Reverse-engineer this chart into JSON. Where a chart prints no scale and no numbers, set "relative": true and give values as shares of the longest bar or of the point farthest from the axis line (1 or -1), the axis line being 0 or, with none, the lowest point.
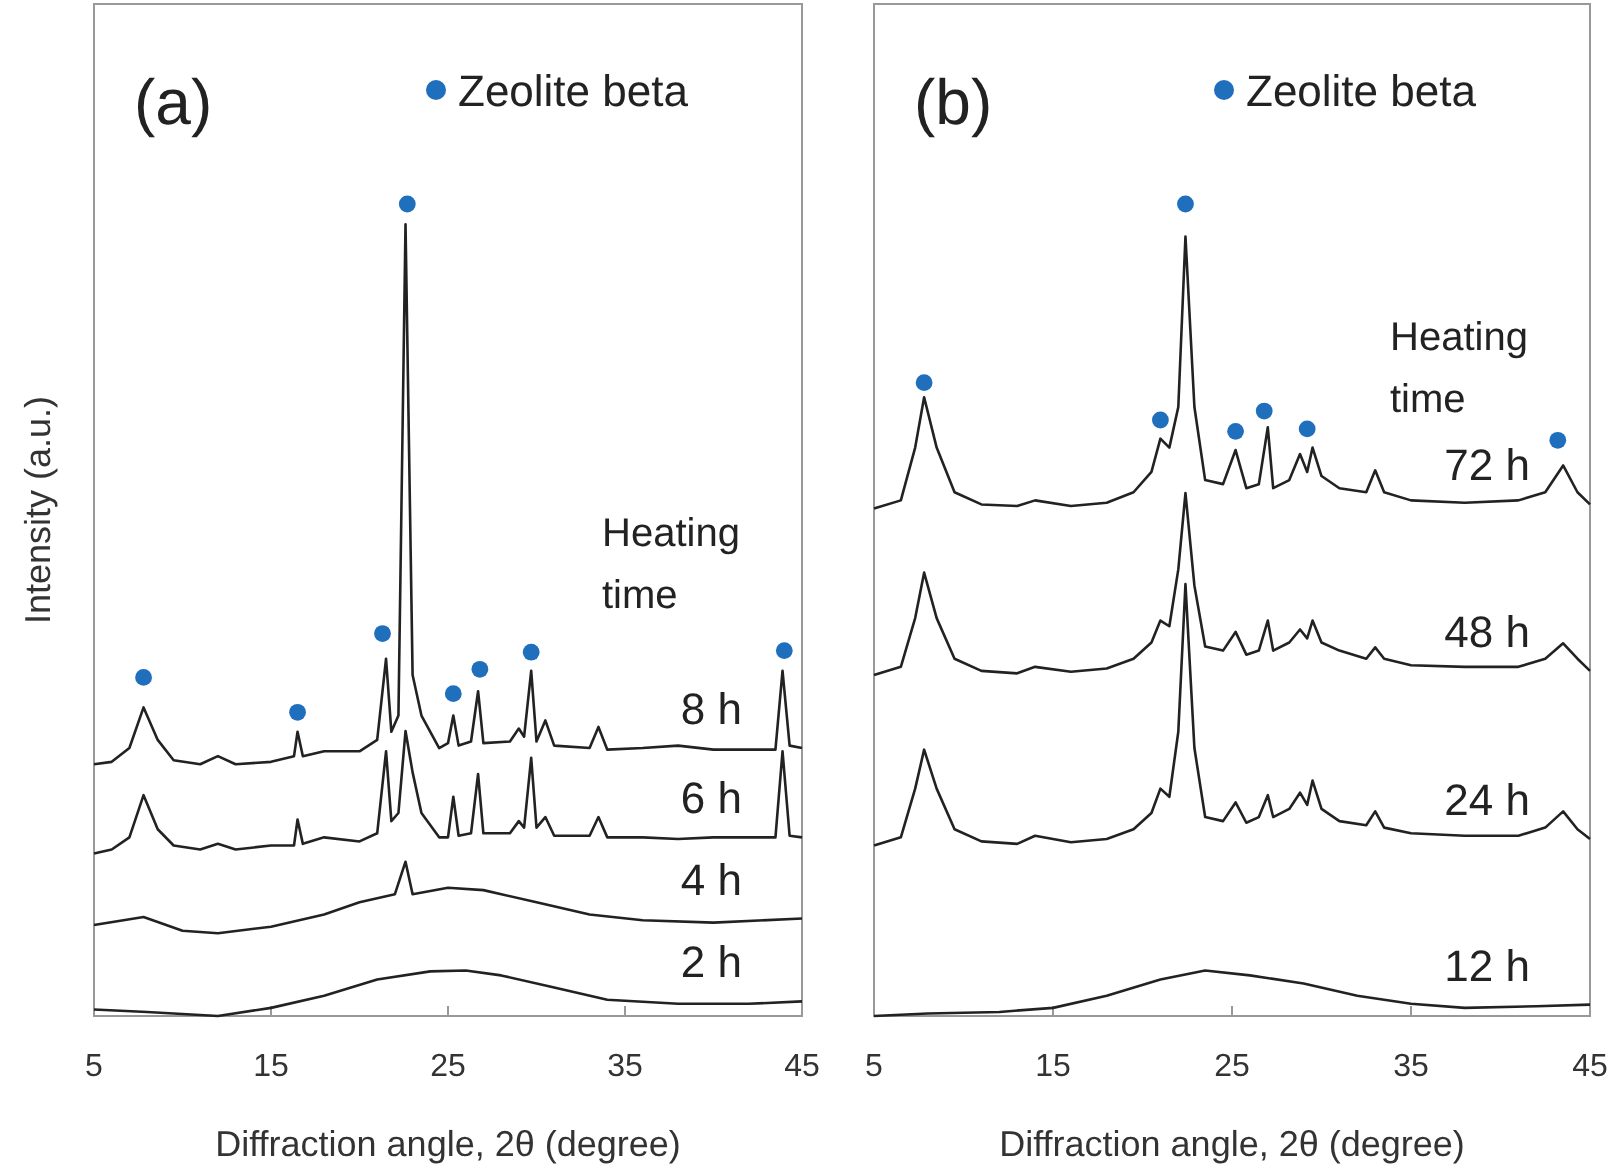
{
  "chart_data": [
    {
      "type": "line",
      "title": "(a)",
      "xlabel": "Diffraction angle, 2θ (degree)",
      "ylabel": "Intensity (a.u.)",
      "relative": true,
      "xlim": [
        5,
        45
      ],
      "xticks": [
        5,
        15,
        25,
        35,
        45
      ],
      "legend": "top right",
      "annotations": [
        "Heating time"
      ],
      "series": [
        {
          "name": "8 h",
          "color": "#222222",
          "x": [
            5,
            6,
            7,
            7.8,
            8.6,
            9.5,
            11,
            12,
            13,
            15,
            16.3,
            16.5,
            16.8,
            18,
            20,
            21,
            21.5,
            21.8,
            22.2,
            22.6,
            23,
            23.5,
            24.5,
            25,
            25.3,
            25.6,
            26.3,
            26.7,
            27,
            28.5,
            29,
            29.3,
            29.7,
            30,
            30.5,
            31,
            33,
            33.5,
            34,
            36,
            38,
            40,
            43.5,
            43.9,
            44.3,
            45
          ],
          "values": [
            0.31,
            0.313,
            0.33,
            0.38,
            0.34,
            0.315,
            0.31,
            0.32,
            0.31,
            0.313,
            0.32,
            0.35,
            0.32,
            0.326,
            0.326,
            0.34,
            0.44,
            0.35,
            0.37,
            0.975,
            0.42,
            0.37,
            0.33,
            0.336,
            0.37,
            0.333,
            0.338,
            0.4,
            0.336,
            0.338,
            0.354,
            0.344,
            0.425,
            0.338,
            0.364,
            0.333,
            0.33,
            0.356,
            0.328,
            0.33,
            0.333,
            0.328,
            0.328,
            0.425,
            0.333,
            0.33
          ]
        },
        {
          "name": "6 h",
          "color": "#222222",
          "x": [
            5,
            6,
            7,
            7.8,
            8.6,
            9.5,
            11,
            12,
            13,
            15,
            16.3,
            16.5,
            16.8,
            18,
            20,
            21,
            21.5,
            21.8,
            22.2,
            22.6,
            23,
            23.5,
            24.5,
            25,
            25.3,
            25.6,
            26.3,
            26.7,
            27,
            28.5,
            29,
            29.3,
            29.7,
            30,
            30.5,
            31,
            33,
            33.5,
            34,
            36,
            38,
            40,
            43.5,
            43.9,
            44.3,
            45
          ],
          "values": [
            0.2,
            0.205,
            0.22,
            0.272,
            0.23,
            0.21,
            0.205,
            0.212,
            0.205,
            0.21,
            0.21,
            0.242,
            0.212,
            0.22,
            0.215,
            0.225,
            0.326,
            0.24,
            0.25,
            0.351,
            0.3,
            0.25,
            0.22,
            0.22,
            0.27,
            0.222,
            0.225,
            0.298,
            0.225,
            0.225,
            0.24,
            0.232,
            0.318,
            0.232,
            0.245,
            0.222,
            0.222,
            0.245,
            0.22,
            0.22,
            0.218,
            0.22,
            0.22,
            0.326,
            0.222,
            0.22
          ]
        },
        {
          "name": "4 h",
          "color": "#222222",
          "x": [
            5,
            7.8,
            10,
            12,
            15,
            18,
            20,
            22,
            22.6,
            23,
            25,
            27,
            30,
            33,
            36,
            40,
            45
          ],
          "values": [
            0.112,
            0.122,
            0.105,
            0.102,
            0.11,
            0.125,
            0.14,
            0.15,
            0.19,
            0.15,
            0.158,
            0.155,
            0.14,
            0.125,
            0.118,
            0.115,
            0.12
          ]
        },
        {
          "name": "2 h",
          "color": "#222222",
          "x": [
            5,
            8,
            12,
            15,
            18,
            21,
            24,
            26,
            28,
            31,
            34,
            38,
            42,
            45
          ],
          "values": [
            0.008,
            0.005,
            0,
            0.01,
            0.025,
            0.045,
            0.055,
            0.056,
            0.05,
            0.035,
            0.02,
            0.015,
            0.015,
            0.018
          ]
        },
        {
          "name": "Zeolite beta",
          "type": "scatter",
          "marker": "circle",
          "color": "#1f6fbd",
          "x": [
            7.8,
            16.5,
            21.3,
            22.7,
            25.3,
            26.8,
            29.7,
            44
          ],
          "values": [
            0.417,
            0.374,
            0.471,
            1,
            0.397,
            0.427,
            0.448,
            0.45
          ]
        }
      ]
    },
    {
      "type": "line",
      "title": "(b)",
      "xlabel": "Diffraction angle, 2θ (degree)",
      "relative": true,
      "xlim": [
        5,
        45
      ],
      "xticks": [
        5,
        15,
        25,
        35,
        45
      ],
      "legend": "top right",
      "annotations": [
        "Heating time"
      ],
      "series": [
        {
          "name": "72 h",
          "color": "#222222",
          "x": [
            5,
            6.5,
            7.3,
            7.8,
            8.5,
            9.5,
            11,
            13,
            14,
            16,
            18,
            19.5,
            20.5,
            21,
            21.5,
            22,
            22.4,
            22.9,
            23.5,
            24.5,
            25.2,
            25.8,
            26.5,
            27,
            27.3,
            28.2,
            28.8,
            29.2,
            29.5,
            30,
            31,
            32.5,
            33,
            33.5,
            35,
            38,
            41,
            42.5,
            43.5,
            44.3,
            45
          ],
          "values": [
            0.625,
            0.635,
            0.7,
            0.762,
            0.7,
            0.645,
            0.63,
            0.628,
            0.635,
            0.628,
            0.632,
            0.645,
            0.67,
            0.711,
            0.7,
            0.75,
            0.96,
            0.75,
            0.66,
            0.655,
            0.697,
            0.65,
            0.655,
            0.725,
            0.65,
            0.66,
            0.692,
            0.67,
            0.7,
            0.665,
            0.65,
            0.645,
            0.672,
            0.645,
            0.635,
            0.632,
            0.635,
            0.645,
            0.678,
            0.645,
            0.63
          ]
        },
        {
          "name": "48 h",
          "color": "#222222",
          "x": [
            5,
            6.5,
            7.3,
            7.8,
            8.5,
            9.5,
            11,
            13,
            14,
            16,
            18,
            19.5,
            20.5,
            21,
            21.5,
            22,
            22.4,
            22.9,
            23.5,
            24.5,
            25.2,
            25.8,
            26.5,
            27,
            27.3,
            28.2,
            28.8,
            29.2,
            29.5,
            30,
            31,
            32.5,
            33,
            33.5,
            35,
            38,
            41,
            42.5,
            43.5,
            44.3,
            45
          ],
          "values": [
            0.42,
            0.43,
            0.49,
            0.546,
            0.49,
            0.44,
            0.425,
            0.422,
            0.43,
            0.424,
            0.428,
            0.44,
            0.46,
            0.487,
            0.48,
            0.55,
            0.644,
            0.53,
            0.455,
            0.45,
            0.473,
            0.445,
            0.45,
            0.487,
            0.45,
            0.46,
            0.476,
            0.465,
            0.487,
            0.46,
            0.45,
            0.44,
            0.454,
            0.44,
            0.432,
            0.43,
            0.43,
            0.44,
            0.459,
            0.44,
            0.425
          ]
        },
        {
          "name": "24 h",
          "color": "#222222",
          "x": [
            5,
            6.5,
            7.3,
            7.8,
            8.5,
            9.5,
            11,
            13,
            14,
            16,
            18,
            19.5,
            20.5,
            21,
            21.5,
            22,
            22.4,
            22.9,
            23.5,
            24.5,
            25.2,
            25.8,
            26.5,
            27,
            27.3,
            28.2,
            28.8,
            29.2,
            29.5,
            30,
            31,
            32.5,
            33,
            33.5,
            35,
            38,
            41,
            42.5,
            43.5,
            44.3,
            45
          ],
          "values": [
            0.21,
            0.22,
            0.28,
            0.328,
            0.28,
            0.23,
            0.215,
            0.212,
            0.222,
            0.214,
            0.218,
            0.23,
            0.25,
            0.28,
            0.27,
            0.35,
            0.532,
            0.33,
            0.245,
            0.24,
            0.263,
            0.238,
            0.245,
            0.272,
            0.245,
            0.255,
            0.275,
            0.26,
            0.29,
            0.255,
            0.24,
            0.235,
            0.252,
            0.232,
            0.225,
            0.222,
            0.222,
            0.232,
            0.252,
            0.23,
            0.218
          ]
        },
        {
          "name": "12 h",
          "color": "#222222",
          "x": [
            5,
            8,
            12,
            15,
            18,
            21,
            23.5,
            26,
            29,
            32,
            35,
            38,
            42,
            45
          ],
          "values": [
            0,
            0.003,
            0.005,
            0.01,
            0.025,
            0.045,
            0.056,
            0.05,
            0.04,
            0.025,
            0.015,
            0.01,
            0.012,
            0.014
          ]
        },
        {
          "name": "Zeolite beta",
          "type": "scatter",
          "marker": "circle",
          "color": "#1f6fbd",
          "x": [
            7.8,
            21,
            22.4,
            25.2,
            26.8,
            29.2,
            43.2
          ],
          "values": [
            0.78,
            0.734,
            1,
            0.72,
            0.745,
            0.723,
            0.709
          ]
        }
      ]
    }
  ]
}
